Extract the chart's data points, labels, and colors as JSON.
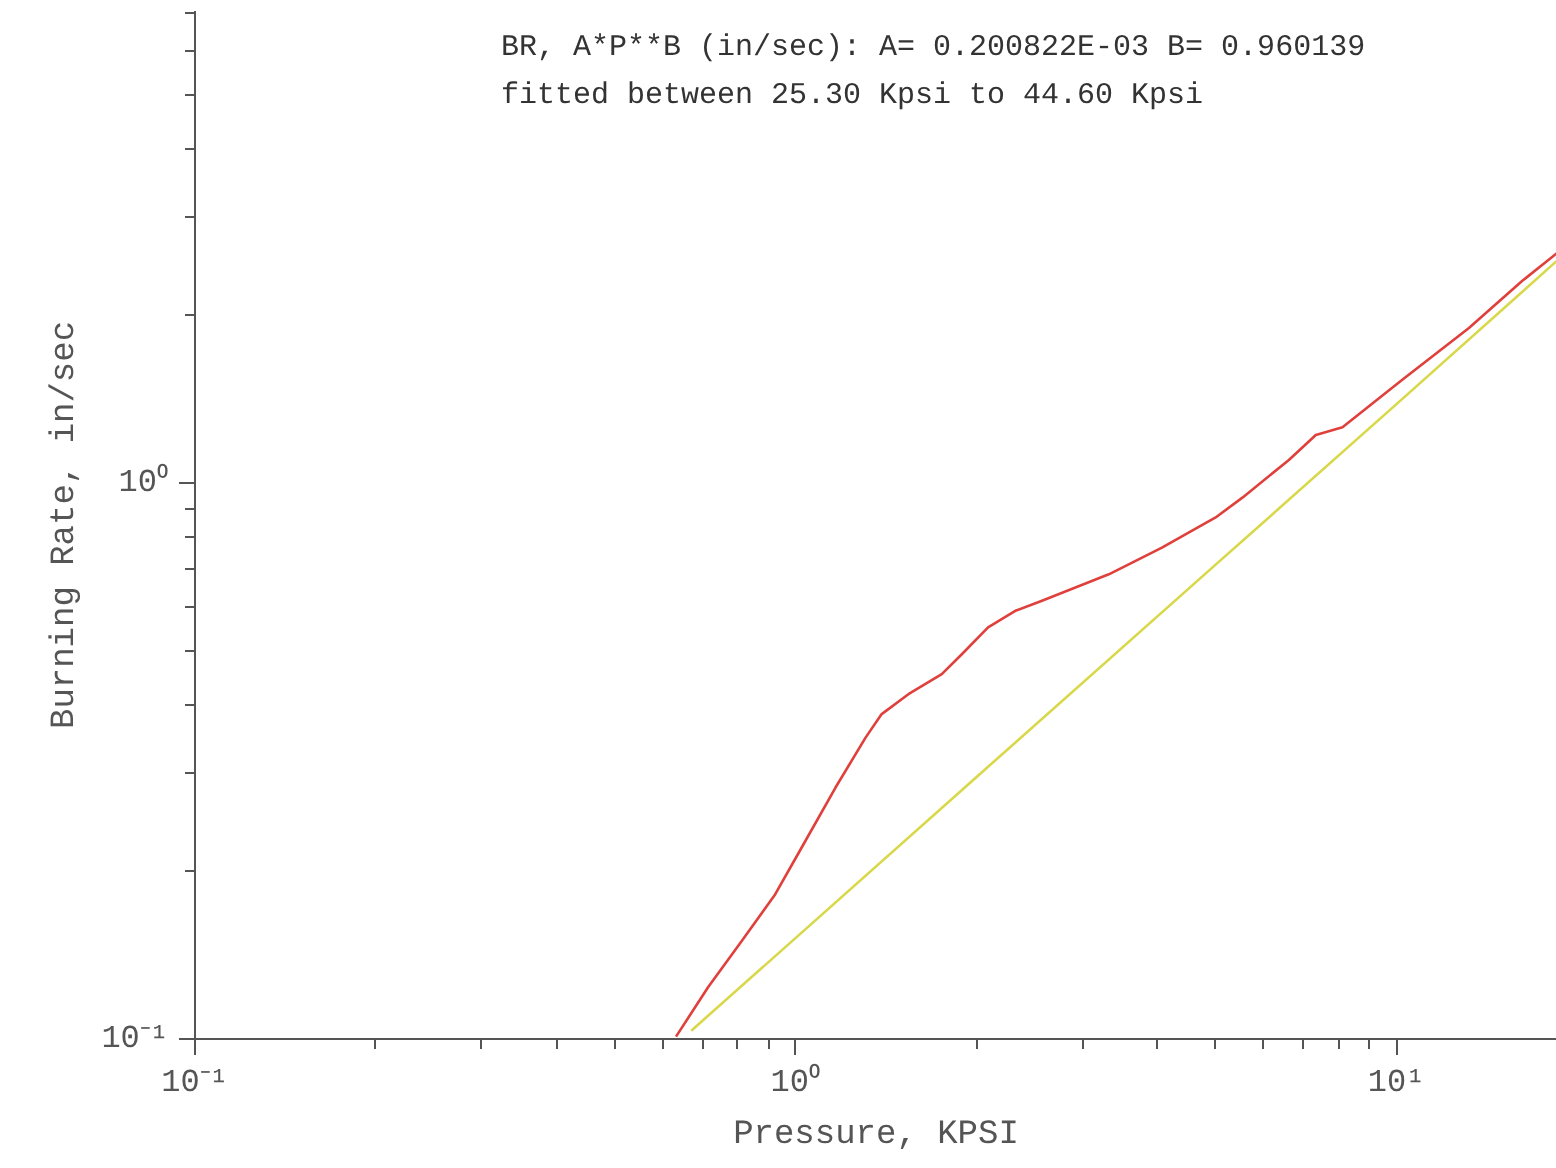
{
  "chart_data": {
    "type": "line",
    "xlabel": "Pressure, KPSI",
    "ylabel": "Burning Rate, in/sec",
    "annotations": [
      "BR, A*P**B (in/sec): A= 0.200822E-03 B=  0.960139",
      "fitted between 25.30 Kpsi to 44.60 Kpsi"
    ],
    "log": "xy",
    "grid": false,
    "marker": "none",
    "line_style": "solid",
    "xlim": [
      0.1,
      18.5
    ],
    "ylim": [
      0.1,
      7.06
    ],
    "xticks": [
      {
        "value": 0.1,
        "label": "10⁻¹"
      },
      {
        "value": 1,
        "label": "10⁰"
      },
      {
        "value": 10,
        "label": "10¹"
      }
    ],
    "yticks": [
      {
        "value": 0.1,
        "label": "10⁻¹"
      },
      {
        "value": 1,
        "label": "10⁰"
      }
    ],
    "series": [
      {
        "color": "#e0403c",
        "x": [
          0.632,
          0.715,
          0.813,
          0.924,
          1.023,
          1.164,
          1.306,
          1.39,
          1.54,
          1.75,
          1.89,
          2.09,
          2.32,
          2.57,
          3.32,
          4.07,
          5.0,
          5.54,
          6.62,
          7.34,
          8.13,
          10.2,
          13.2,
          16.2,
          18.5
        ],
        "values": [
          0.101,
          0.124,
          0.15,
          0.182,
          0.221,
          0.283,
          0.348,
          0.384,
          0.417,
          0.453,
          0.492,
          0.55,
          0.589,
          0.614,
          0.685,
          0.765,
          0.867,
          0.941,
          1.1,
          1.22,
          1.26,
          1.53,
          1.9,
          2.31,
          2.59
        ]
      },
      {
        "color": "#d8d84a",
        "x": [
          0.67,
          1,
          2,
          5,
          10,
          18.5
        ],
        "values": [
          0.1035,
          0.152,
          0.296,
          0.713,
          1.386,
          2.51
        ]
      }
    ]
  }
}
